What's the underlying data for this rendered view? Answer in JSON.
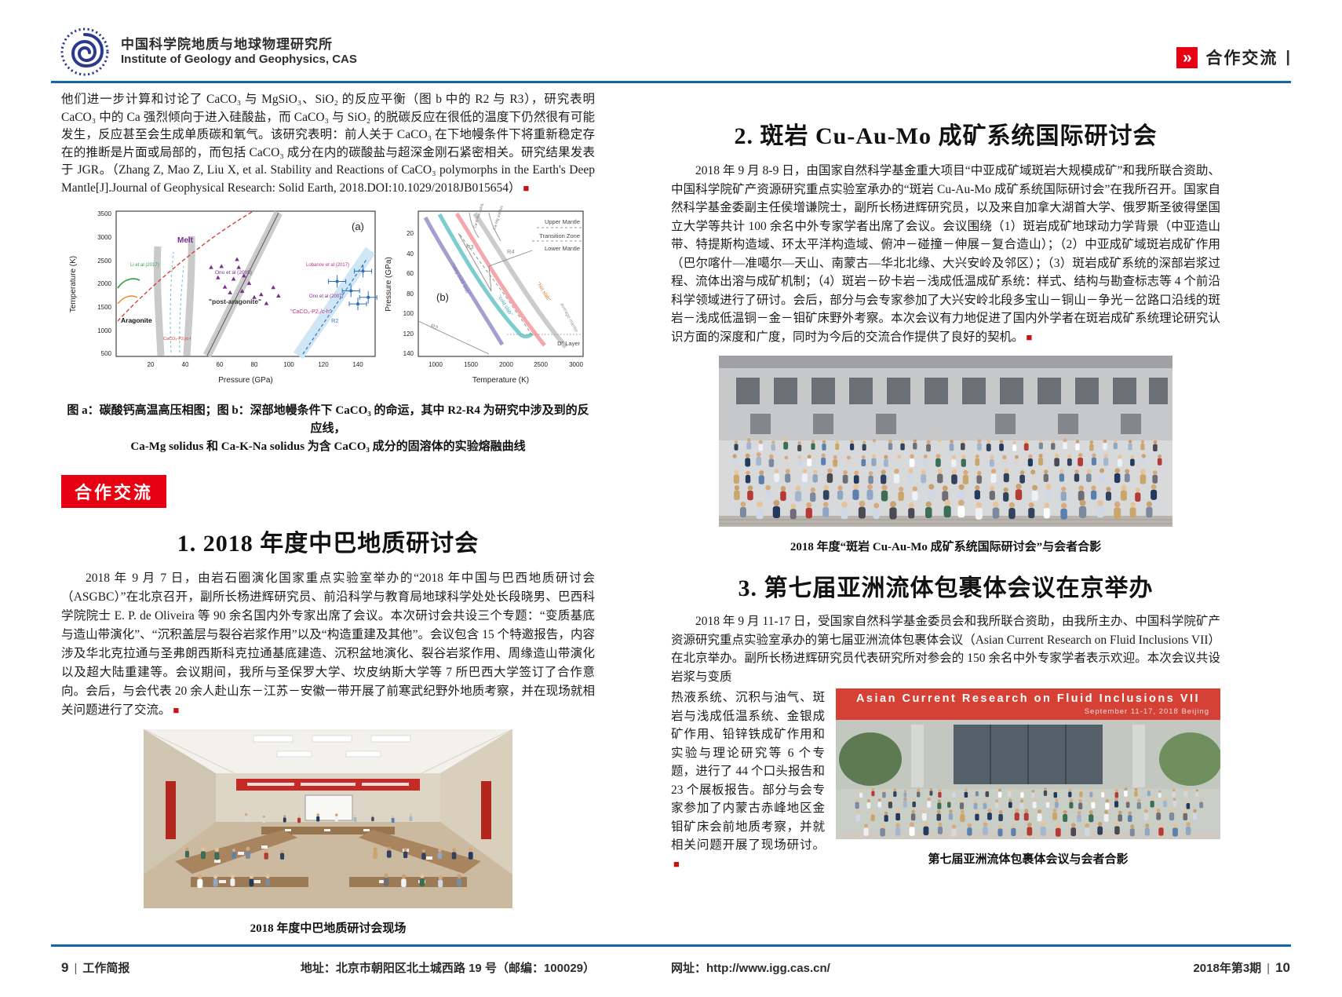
{
  "header": {
    "org_cn": "中国科学院地质与地球物理研究所",
    "org_en": "Institute of Geology and Geophysics, CAS",
    "chevron": "»",
    "section_label": "合作交流",
    "divider": "|"
  },
  "misc": {
    "end_marker": "■"
  },
  "left_page": {
    "intro_text": "他们进一步计算和讨论了 CaCO₃ 与 MgSiO₃、SiO₂ 的反应平衡（图 b 中的 R2 与 R3），研究表明 CaCO₃ 中的 Ca 强烈倾向于进入硅酸盐，而 CaCO₃ 与 SiO₂ 的脱碳反应在很低的温度下仍然很有可能发生，反应甚至会生成单质碳和氧气。该研究表明：前人关于 CaCO₃ 在下地幔条件下将重新稳定存在的推断是片面或局部的，而包括 CaCO₃ 成分在内的碳酸盐与超深金刚石紧密相关。研究结果发表于 JGR。（Zhang Z, Mao Z, Liu X, et al. Stability and Reactions of CaCO₃ polymorphs in the Earth's Deep Mantle[J].Journal of Geophysical Research: Solid Earth, 2018.DOI:10.1029/2018JB015654）",
    "figure_caption_1": "图 a：碳酸钙高温高压相图；图 b：深部地幔条件下 CaCO₃ 的命运，其中 R2-R4 为研究中涉及到的反应线，",
    "figure_caption_2": "Ca-Mg solidus 和 Ca-K-Na solidus 为含 CaCO₃ 成分的固溶体的实验熔融曲线",
    "badge_label": "合作交流",
    "article1": {
      "title": "1. 2018 年度中巴地质研讨会",
      "body": "2018 年 9 月 7 日，由岩石圈演化国家重点实验室举办的“2018 年中国与巴西地质研讨会（ASGBC）”在北京召开，副所长杨进辉研究员、前沿科学与教育局地球科学处处长段晓男、巴西科学院院士 E. P. de Oliveira 等 90 余名国内外专家出席了会议。本次研讨会共设三个专题：“变质基底与造山带演化”、“沉积盖层与裂谷岩浆作用”以及“构造重建及其他”。会议包含 15 个特邀报告，内容涉及华北克拉通与圣弗朗西斯科克拉通基底建造、沉积盆地演化、裂谷岩浆作用、周缘造山带演化以及超大陆重建等。会议期间，我所与圣保罗大学、坎皮纳斯大学等 7 所巴西大学签订了合作意向。会后，与会代表 20 余人赴山东－江苏－安徽一带开展了前寒武纪野外地质考察，并在现场就相关问题进行了交流。",
      "photo_caption": "2018 年度中巴地质研讨会现场"
    },
    "footer": {
      "page_number": "9",
      "page_title": "工作简报",
      "address": "地址：北京市朝阳区北土城西路 19 号（邮编：100029）"
    }
  },
  "right_page": {
    "article2": {
      "title": "2. 斑岩 Cu-Au-Mo 成矿系统国际研讨会",
      "body": "2018 年 9 月 8-9 日，由国家自然科学基金重大项目“中亚成矿域斑岩大规模成矿”和我所联合资助、中国科学院矿产资源研究重点实验室承办的“斑岩 Cu-Au-Mo 成矿系统国际研讨会”在我所召开。国家自然科学基金委副主任侯增谦院士，副所长杨进辉研究员，以及来自加拿大湖首大学、俄罗斯圣彼得堡国立大学等共计 100 余名中外专家学者出席了会议。会议围绕（1）斑岩成矿地球动力学背景（中亚造山带、特提斯构造域、环太平洋构造域、俯冲－碰撞－伸展－复合造山）；（2）中亚成矿域斑岩成矿作用（巴尔喀什—准噶尔—天山、南蒙古—华北北缘、大兴安岭及邻区）；（3）斑岩成矿系统的深部岩浆过程、流体出溶与成矿机制；（4）斑岩－矽卡岩－浅成低温成矿系统：样式、结构与勘查标志等 4 个前沿科学领域进行了研讨。会后，部分与会专家参加了大兴安岭北段多宝山－铜山－争光－岔路口沿线的斑岩－浅成低温铜－金－钼矿床野外考察。本次会议有力地促进了国内外学者在斑岩成矿系统理论研究认识方面的深度和广度，同时为今后的交流合作提供了良好的契机。",
      "photo_caption": "2018 年度“斑岩 Cu-Au-Mo 成矿系统国际研讨会”与会者合影"
    },
    "article3": {
      "title": "3. 第七届亚洲流体包裹体会议在京举办",
      "body_top": "2018 年 9 月 11-17 日，受国家自然科学基金委员会和我所联合资助，由我所主办、中国科学院矿产资源研究重点实验室承办的第七届亚洲流体包裹体会议（Asian Current Research on Fluid Inclusions VII）在北京举办。副所长杨进辉研究员代表研究所对参会的 150 余名中外专家学者表示欢迎。本次会议共设岩浆与变质",
      "body_side": "热液系统、沉积与油气、斑岩与浅成低温系统、金银成矿作用、铅锌铁成矿作用和实验与理论研究等 6 个专题，进行了 44 个口头报告和 23 个展板报告。部分与会专家参加了内蒙古赤峰地区金钼矿床会前地质考察，并就相关问题开展了现场研讨。",
      "banner_title": "Asian Current Research on Fluid Inclusions VII",
      "banner_subtitle": "September 11-17, 2018  Beijing",
      "photo_caption": "第七届亚洲流体包裹体会议与会者合影"
    },
    "footer": {
      "website": "网址：http://www.igg.cas.cn/",
      "issue": "2018年第3期",
      "page_number": "10"
    }
  },
  "chart_data": [
    {
      "type": "line",
      "panel_label": "(a)",
      "xlabel": "Pressure (GPa)",
      "ylabel": "Temperature (K)",
      "xlim": [
        0,
        150
      ],
      "ylim": [
        400,
        3500
      ],
      "xticks": [
        20,
        40,
        60,
        80,
        100,
        120,
        140
      ],
      "yticks": [
        500,
        1000,
        1500,
        2000,
        2500,
        3000,
        3500
      ],
      "grid": false,
      "phase_labels": {
        "melt": "Melt",
        "aragonite": "Aragonite",
        "post_aragonite": "\"post-aragonite\"",
        "high_phase": "\"CaCO₃-P2₁/c-h\"",
        "low_phase": "CaCO₃-P2₁/c-l",
        "r2": "R2"
      },
      "annotations": [
        "Li et al (2017)",
        "Ono et al (2005)",
        "Lobanov et al (2017)",
        "Ono et al (2007)"
      ],
      "triangle_points": [
        [
          55,
          2300
        ],
        [
          59,
          2080
        ],
        [
          63,
          1880
        ],
        [
          66,
          1760
        ],
        [
          70,
          2470
        ],
        [
          71,
          2300
        ],
        [
          74,
          2120
        ],
        [
          77,
          1960
        ],
        [
          80,
          1660
        ],
        [
          84,
          1720
        ],
        [
          87,
          1530
        ],
        [
          91,
          1870
        ],
        [
          94,
          1690
        ],
        [
          61,
          2320
        ],
        [
          68,
          2050
        ],
        [
          73,
          1790
        ]
      ],
      "errorbar_points": [
        [
          128,
          2000
        ],
        [
          136,
          1800
        ],
        [
          140,
          1520
        ],
        [
          143,
          2220
        ],
        [
          146,
          1660
        ]
      ]
    },
    {
      "type": "line",
      "panel_label": "(b)",
      "xlabel": "Temperature (K)",
      "ylabel": "Pressure (GPa)",
      "xlim": [
        750,
        3100
      ],
      "ylim_inverted": [
        0,
        145
      ],
      "xticks": [
        1000,
        1500,
        2000,
        2500,
        3000
      ],
      "yticks": [
        20,
        40,
        60,
        80,
        100,
        120,
        140
      ],
      "grid": false,
      "layers": [
        "Upper Mantle",
        "Transition Zone",
        "Lower Mantle"
      ],
      "d_layer": "D″ Layer",
      "slab_labels": [
        "\"very cold slab\"",
        "\"cold slab\"",
        "\"hot slab\"",
        "average mantle"
      ],
      "reaction_labels": [
        "R2",
        "R3",
        "R4"
      ],
      "solidus_labels": [
        "Ca-K-Na solidus",
        "Ca-Mg solidus"
      ]
    }
  ]
}
